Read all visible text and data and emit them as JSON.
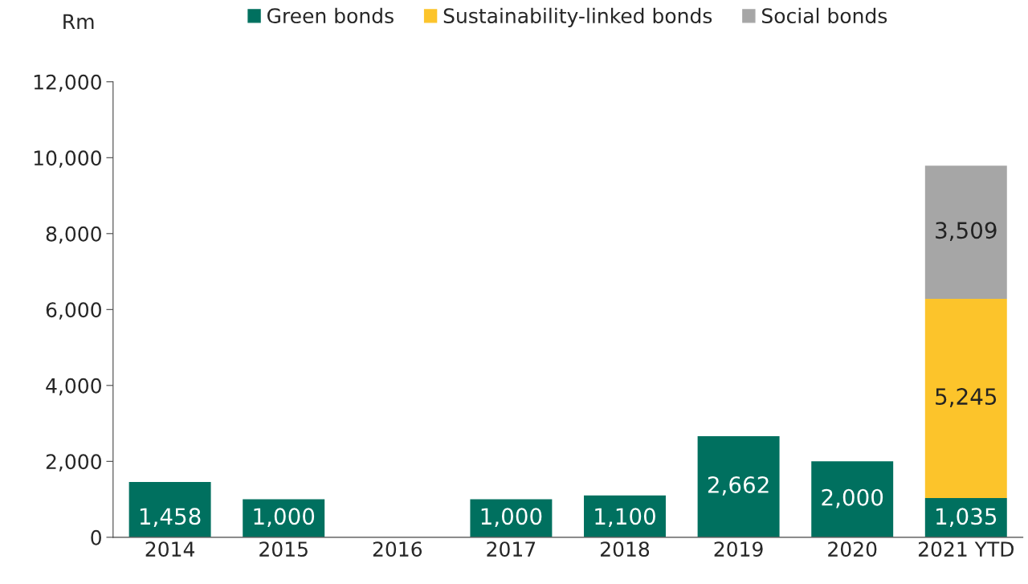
{
  "chart_data": {
    "type": "bar",
    "stacked": true,
    "ylabel": "Rm",
    "categories": [
      "2014",
      "2015",
      "2016",
      "2017",
      "2018",
      "2019",
      "2020",
      "2021 YTD"
    ],
    "series": [
      {
        "name": "Green bonds",
        "color": "#00705f",
        "values": [
          1458,
          1000,
          null,
          1000,
          1100,
          2662,
          2000,
          1035
        ],
        "value_labels": [
          "1,458",
          "1,000",
          null,
          "1,000",
          "1,100",
          "2,662",
          "2,000",
          "1,035"
        ]
      },
      {
        "name": "Sustainability-linked bonds",
        "color": "#fcc42b",
        "values": [
          null,
          null,
          null,
          null,
          null,
          null,
          null,
          5245
        ],
        "value_labels": [
          null,
          null,
          null,
          null,
          null,
          null,
          null,
          "5,245"
        ]
      },
      {
        "name": "Social bonds",
        "color": "#a6a6a6",
        "values": [
          null,
          null,
          null,
          null,
          null,
          null,
          null,
          3509
        ],
        "value_labels": [
          null,
          null,
          null,
          null,
          null,
          null,
          null,
          "3,509"
        ]
      }
    ],
    "ylim": [
      0,
      12000
    ],
    "yticks": [
      {
        "value": 0,
        "label": "0"
      },
      {
        "value": 2000,
        "label": "2,000"
      },
      {
        "value": 4000,
        "label": "4,000"
      },
      {
        "value": 6000,
        "label": "6,000"
      },
      {
        "value": 8000,
        "label": "8,000"
      },
      {
        "value": 10000,
        "label": "10,000"
      },
      {
        "value": 12000,
        "label": "12,000"
      }
    ],
    "grid": false,
    "legend": "top"
  }
}
